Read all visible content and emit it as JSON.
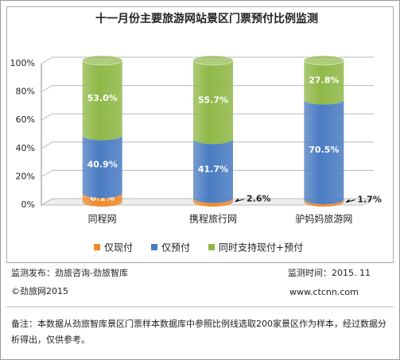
{
  "chart_data": {
    "type": "bar",
    "stacked": true,
    "title": "十一月份主要旅游网站景区门票预付比例监测",
    "categories": [
      "同程网",
      "携程旅行网",
      "驴妈妈旅游网"
    ],
    "series": [
      {
        "name": "仅现付",
        "color": "#ef8a2c",
        "values": [
          6.1,
          2.6,
          1.7
        ],
        "value_labels": [
          "6.1%",
          "2.6%",
          "1.7%"
        ]
      },
      {
        "name": "仅预付",
        "color": "#4a7cc2",
        "values": [
          40.9,
          41.7,
          70.5
        ],
        "value_labels": [
          "40.9%",
          "41.7%",
          "70.5%"
        ]
      },
      {
        "name": "同时支持现付+预付",
        "color": "#8fb847",
        "values": [
          53.0,
          55.7,
          27.8
        ],
        "value_labels": [
          "53.0%",
          "55.7%",
          "27.8%"
        ]
      }
    ],
    "ylim": [
      0,
      100
    ],
    "yticks": [
      {
        "value": 0,
        "label": "0%"
      },
      {
        "value": 20,
        "label": "20%"
      },
      {
        "value": 40,
        "label": "40%"
      },
      {
        "value": 60,
        "label": "60%"
      },
      {
        "value": 80,
        "label": "80%"
      },
      {
        "value": 100,
        "label": "100%"
      }
    ],
    "grid": true,
    "legend": "bottom"
  },
  "footer": {
    "publisher": "监测发布：劲旅咨询-劲旅智库",
    "time": "监测时间：2015. 11",
    "copyright": "©劲旅网2015",
    "website": "www.ctcnn.com",
    "note": "备注：本数据从劲旅智库景区门票样本数据库中参照比例线选取200家景区作为样本，经过数据分析得出，仅供参考。"
  }
}
